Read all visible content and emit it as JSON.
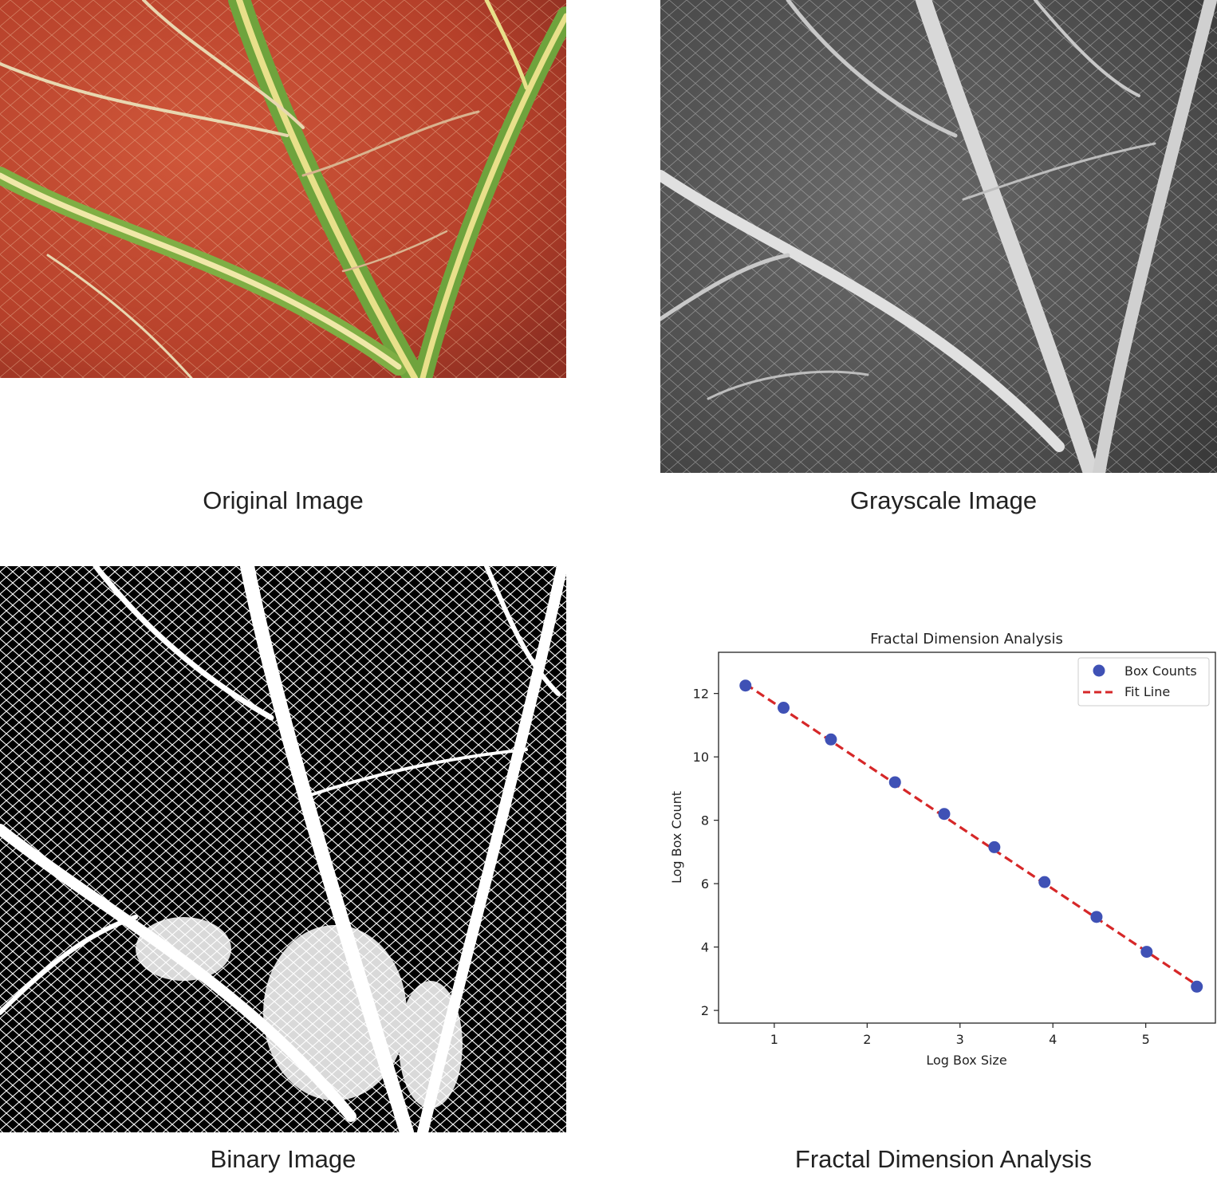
{
  "captions": {
    "original": "Original Image",
    "grayscale": "Grayscale Image",
    "binary": "Binary Image",
    "fractal": "Fractal Dimension Analysis"
  },
  "colors": {
    "leaf_base": "#b5402a",
    "leaf_vein": "#6fa33d",
    "leaf_highlight": "#e8e08a",
    "gray_base": "#4a4a4a",
    "gray_vein": "#e6e6e6",
    "binary_black": "#000000",
    "binary_white": "#ffffff",
    "points": "#3f51b5",
    "fit_line": "#d62728"
  },
  "chart_data": {
    "type": "scatter",
    "title": "Fractal Dimension Analysis",
    "xlabel": "Log Box Size",
    "ylabel": "Log Box Count",
    "xlim": [
      0.4,
      5.75
    ],
    "ylim": [
      1.6,
      13.3
    ],
    "xticks": [
      1,
      2,
      3,
      4,
      5
    ],
    "yticks": [
      2,
      4,
      6,
      8,
      10,
      12
    ],
    "legend_position": "top-right",
    "series": [
      {
        "name": "Box Counts",
        "kind": "scatter",
        "x": [
          0.69,
          1.1,
          1.61,
          2.3,
          2.83,
          3.37,
          3.91,
          4.47,
          5.01,
          5.55
        ],
        "y": [
          12.25,
          11.55,
          10.55,
          9.2,
          8.2,
          7.15,
          6.05,
          4.95,
          3.85,
          2.75
        ]
      },
      {
        "name": "Fit Line",
        "kind": "line",
        "style": "dashed",
        "x": [
          0.69,
          5.55
        ],
        "y": [
          12.3,
          2.8
        ]
      }
    ]
  }
}
